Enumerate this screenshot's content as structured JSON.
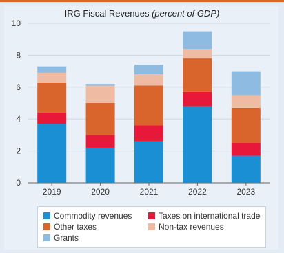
{
  "chart_data": {
    "type": "bar",
    "stacked": true,
    "title": "IRG Fiscal Revenues",
    "title_unit": "(percent of GDP)",
    "categories": [
      "2019",
      "2020",
      "2021",
      "2022",
      "2023"
    ],
    "ylim": [
      0,
      10
    ],
    "yticks": [
      0,
      2,
      4,
      6,
      8,
      10
    ],
    "grid": "horizontal",
    "legend_position": "bottom",
    "series": [
      {
        "name": "Commodity revenues",
        "color": "#1a8fd3",
        "values": [
          3.7,
          2.2,
          2.6,
          4.8,
          1.7
        ]
      },
      {
        "name": "Taxes on international trade",
        "color": "#e8183a",
        "values": [
          0.7,
          0.8,
          1.0,
          0.9,
          0.8
        ]
      },
      {
        "name": "Other taxes",
        "color": "#d9652c",
        "values": [
          1.9,
          2.0,
          2.5,
          2.1,
          2.2
        ]
      },
      {
        "name": "Non-tax revenues",
        "color": "#f0bba3",
        "values": [
          0.6,
          1.1,
          0.7,
          0.6,
          0.8
        ]
      },
      {
        "name": "Grants",
        "color": "#8ebbe2",
        "values": [
          0.4,
          0.1,
          0.6,
          1.1,
          1.5
        ]
      }
    ]
  }
}
